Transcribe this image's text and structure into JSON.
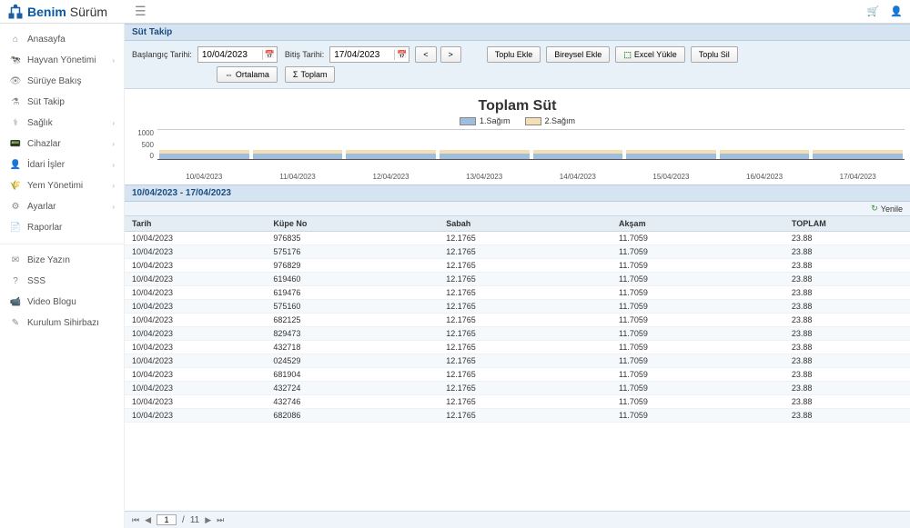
{
  "brand": {
    "part1": "Benim",
    "part2": "Sürüm"
  },
  "sidebar": {
    "items": [
      {
        "label": "Anasayfa",
        "icon": "⌂",
        "expandable": false
      },
      {
        "label": "Hayvan Yönetimi",
        "icon": "🐄",
        "expandable": true
      },
      {
        "label": "Sürüye Bakış",
        "icon": "👁",
        "expandable": false
      },
      {
        "label": "Süt Takip",
        "icon": "⚗",
        "expandable": false
      },
      {
        "label": "Sağlık",
        "icon": "⚕",
        "expandable": true
      },
      {
        "label": "Cihazlar",
        "icon": "📟",
        "expandable": true
      },
      {
        "label": "İdari İşler",
        "icon": "👤",
        "expandable": true
      },
      {
        "label": "Yem Yönetimi",
        "icon": "🌾",
        "expandable": true
      },
      {
        "label": "Ayarlar",
        "icon": "⚙",
        "expandable": true
      },
      {
        "label": "Raporlar",
        "icon": "📄",
        "expandable": false
      }
    ],
    "footer": [
      {
        "label": "Bize Yazın",
        "icon": "✉"
      },
      {
        "label": "SSS",
        "icon": "?"
      },
      {
        "label": "Video Blogu",
        "icon": "📹"
      },
      {
        "label": "Kurulum Sihirbazı",
        "icon": "✎"
      }
    ]
  },
  "panel": {
    "title": "Süt Takip",
    "start_label": "Başlangıç Tarihi:",
    "end_label": "Bitiş Tarihi:",
    "start_date": "10/04/2023",
    "end_date": "17/04/2023",
    "btn_prev": "<",
    "btn_next": ">",
    "btn_toplu_ekle": "Toplu Ekle",
    "btn_bireysel_ekle": "Bireysel Ekle",
    "btn_excel": "Excel Yükle",
    "btn_toplu_sil": "Toplu Sil",
    "btn_ortalama": "Ortalama",
    "btn_toplam": "Toplam"
  },
  "chart": {
    "title": "Toplam Süt",
    "series": [
      {
        "name": "1.Sağım",
        "color": "#9fbede"
      },
      {
        "name": "2.Sağım",
        "color": "#f5deb3"
      }
    ],
    "y_ticks": [
      "1000",
      "500",
      "0"
    ],
    "y_max": 1000,
    "categories": [
      "10/04/2023",
      "11/04/2023",
      "12/04/2023",
      "13/04/2023",
      "14/04/2023",
      "15/04/2023",
      "16/04/2023",
      "17/04/2023"
    ],
    "values": [
      {
        "s1": 180,
        "s2": 120
      },
      {
        "s1": 180,
        "s2": 120
      },
      {
        "s1": 180,
        "s2": 120
      },
      {
        "s1": 180,
        "s2": 120
      },
      {
        "s1": 180,
        "s2": 120
      },
      {
        "s1": 180,
        "s2": 120
      },
      {
        "s1": 180,
        "s2": 120
      },
      {
        "s1": 180,
        "s2": 120
      }
    ],
    "background": "#ffffff",
    "axis_color": "#555555"
  },
  "grid": {
    "header": "10/04/2023 - 17/04/2023",
    "refresh": "Yenile",
    "columns": [
      "Tarih",
      "Küpe No",
      "Sabah",
      "Akşam",
      "TOPLAM"
    ],
    "rows": [
      [
        "10/04/2023",
        "976835",
        "12.1765",
        "11.7059",
        "23.88"
      ],
      [
        "10/04/2023",
        "575176",
        "12.1765",
        "11.7059",
        "23.88"
      ],
      [
        "10/04/2023",
        "976829",
        "12.1765",
        "11.7059",
        "23.88"
      ],
      [
        "10/04/2023",
        "619460",
        "12.1765",
        "11.7059",
        "23.88"
      ],
      [
        "10/04/2023",
        "619476",
        "12.1765",
        "11.7059",
        "23.88"
      ],
      [
        "10/04/2023",
        "575160",
        "12.1765",
        "11.7059",
        "23.88"
      ],
      [
        "10/04/2023",
        "682125",
        "12.1765",
        "11.7059",
        "23.88"
      ],
      [
        "10/04/2023",
        "829473",
        "12.1765",
        "11.7059",
        "23.88"
      ],
      [
        "10/04/2023",
        "432718",
        "12.1765",
        "11.7059",
        "23.88"
      ],
      [
        "10/04/2023",
        "024529",
        "12.1765",
        "11.7059",
        "23.88"
      ],
      [
        "10/04/2023",
        "681904",
        "12.1765",
        "11.7059",
        "23.88"
      ],
      [
        "10/04/2023",
        "432724",
        "12.1765",
        "11.7059",
        "23.88"
      ],
      [
        "10/04/2023",
        "432746",
        "12.1765",
        "11.7059",
        "23.88"
      ],
      [
        "10/04/2023",
        "682086",
        "12.1765",
        "11.7059",
        "23.88"
      ]
    ],
    "page_current": "1",
    "page_sep": "/",
    "page_total": "11"
  }
}
